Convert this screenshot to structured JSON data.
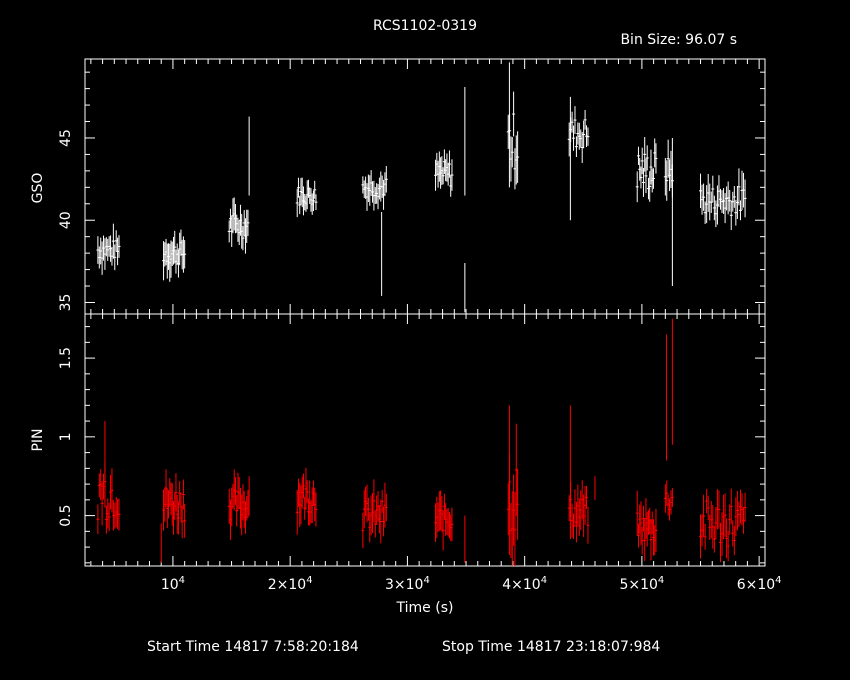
{
  "chart_data": [
    {
      "type": "line",
      "panel": "top",
      "title": "RCS1102-0319",
      "subtitle": "Bin Size: 96.07 s",
      "xlabel": "",
      "ylabel": "GSO",
      "xlim": [
        2500,
        60500
      ],
      "ylim": [
        34.3,
        49.8
      ],
      "yticks": [
        35,
        40,
        45
      ],
      "ytick_labels": [
        "35",
        "40",
        "45"
      ],
      "color": "#ffffff",
      "segments": [
        {
          "x0": 3600,
          "x1": 5400,
          "base": 38.2,
          "amp": 0.6,
          "err": 0.9,
          "n": 16
        },
        {
          "x0": 9200,
          "x1": 11000,
          "base": 38.0,
          "amp": 0.7,
          "err": 1.0,
          "n": 18
        },
        {
          "x0": 14800,
          "x1": 16400,
          "base": 39.7,
          "amp": 0.8,
          "err": 0.9,
          "n": 16
        },
        {
          "x0": 20600,
          "x1": 22200,
          "base": 41.5,
          "amp": 0.6,
          "err": 0.8,
          "n": 16
        },
        {
          "x0": 26200,
          "x1": 28200,
          "base": 42.0,
          "amp": 0.6,
          "err": 0.8,
          "n": 18
        },
        {
          "x0": 32400,
          "x1": 33800,
          "base": 42.8,
          "amp": 0.8,
          "err": 0.8,
          "n": 14
        },
        {
          "x0": 38600,
          "x1": 39400,
          "base": 44.8,
          "amp": 1.8,
          "err": 1.5,
          "n": 8
        },
        {
          "x0": 43800,
          "x1": 45400,
          "base": 45.3,
          "amp": 1.0,
          "err": 0.9,
          "n": 14
        },
        {
          "x0": 49600,
          "x1": 51200,
          "base": 43.0,
          "amp": 1.3,
          "err": 0.9,
          "n": 16
        },
        {
          "x0": 52000,
          "x1": 52600,
          "base": 43.0,
          "amp": 0.8,
          "err": 1.2,
          "n": 6
        },
        {
          "x0": 55000,
          "x1": 58800,
          "base": 41.2,
          "amp": 0.9,
          "err": 1.0,
          "n": 30
        }
      ],
      "spikes": [
        [
          16500,
          41.5,
          46.3
        ],
        [
          27800,
          35.4,
          40.5
        ],
        [
          34900,
          41.5,
          48.1
        ],
        [
          34900,
          34.4,
          37.4
        ],
        [
          38700,
          42.0,
          49.6
        ],
        [
          43900,
          40.0,
          47.5
        ],
        [
          52600,
          36.0,
          45.0
        ]
      ]
    },
    {
      "type": "line",
      "panel": "bottom",
      "title": "",
      "xlabel": "Time (s)",
      "ylabel": "PIN",
      "xlim": [
        2500,
        60500
      ],
      "ylim": [
        0.18,
        1.78
      ],
      "yticks": [
        0.5,
        1,
        1.5
      ],
      "ytick_labels": [
        "0.5",
        "1",
        "1.5"
      ],
      "xticks": [
        10000,
        20000,
        30000,
        40000,
        50000,
        60000
      ],
      "xtick_labels": [
        [
          "10",
          "4"
        ],
        [
          "2×10",
          "4"
        ],
        [
          "3×10",
          "4"
        ],
        [
          "4×10",
          "4"
        ],
        [
          "5×10",
          "4"
        ],
        [
          "6×10",
          "4"
        ]
      ],
      "color": "#ff0000",
      "segments": [
        {
          "x0": 3600,
          "x1": 5400,
          "base": 0.65,
          "amp": 0.18,
          "err": 0.12,
          "n": 16
        },
        {
          "x0": 9200,
          "x1": 11000,
          "base": 0.58,
          "amp": 0.12,
          "err": 0.12,
          "n": 18
        },
        {
          "x0": 14800,
          "x1": 16400,
          "base": 0.57,
          "amp": 0.1,
          "err": 0.12,
          "n": 16
        },
        {
          "x0": 20600,
          "x1": 22200,
          "base": 0.62,
          "amp": 0.1,
          "err": 0.12,
          "n": 16
        },
        {
          "x0": 26200,
          "x1": 28200,
          "base": 0.5,
          "amp": 0.1,
          "err": 0.12,
          "n": 18
        },
        {
          "x0": 32400,
          "x1": 33800,
          "base": 0.48,
          "amp": 0.08,
          "err": 0.12,
          "n": 14
        },
        {
          "x0": 38600,
          "x1": 39400,
          "base": 0.62,
          "amp": 0.25,
          "err": 0.25,
          "n": 8
        },
        {
          "x0": 43800,
          "x1": 45400,
          "base": 0.52,
          "amp": 0.1,
          "err": 0.12,
          "n": 14
        },
        {
          "x0": 49600,
          "x1": 51200,
          "base": 0.42,
          "amp": 0.1,
          "err": 0.12,
          "n": 16
        },
        {
          "x0": 52000,
          "x1": 52600,
          "base": 0.6,
          "amp": 0.08,
          "err": 0.1,
          "n": 6
        },
        {
          "x0": 55000,
          "x1": 58800,
          "base": 0.45,
          "amp": 0.15,
          "err": 0.12,
          "n": 30
        }
      ],
      "spikes": [
        [
          4200,
          0.55,
          1.1
        ],
        [
          9000,
          0.2,
          0.45
        ],
        [
          16500,
          0.5,
          0.75
        ],
        [
          34900,
          0.2,
          0.5
        ],
        [
          38700,
          0.25,
          1.2
        ],
        [
          43900,
          0.35,
          1.2
        ],
        [
          46000,
          0.6,
          0.75
        ],
        [
          52100,
          0.85,
          1.65
        ],
        [
          52600,
          0.95,
          1.75
        ]
      ]
    }
  ],
  "footer": {
    "start_time": "Start Time 14817  7:58:20:184",
    "stop_time": "Stop Time 14817 23:18:07:984"
  }
}
